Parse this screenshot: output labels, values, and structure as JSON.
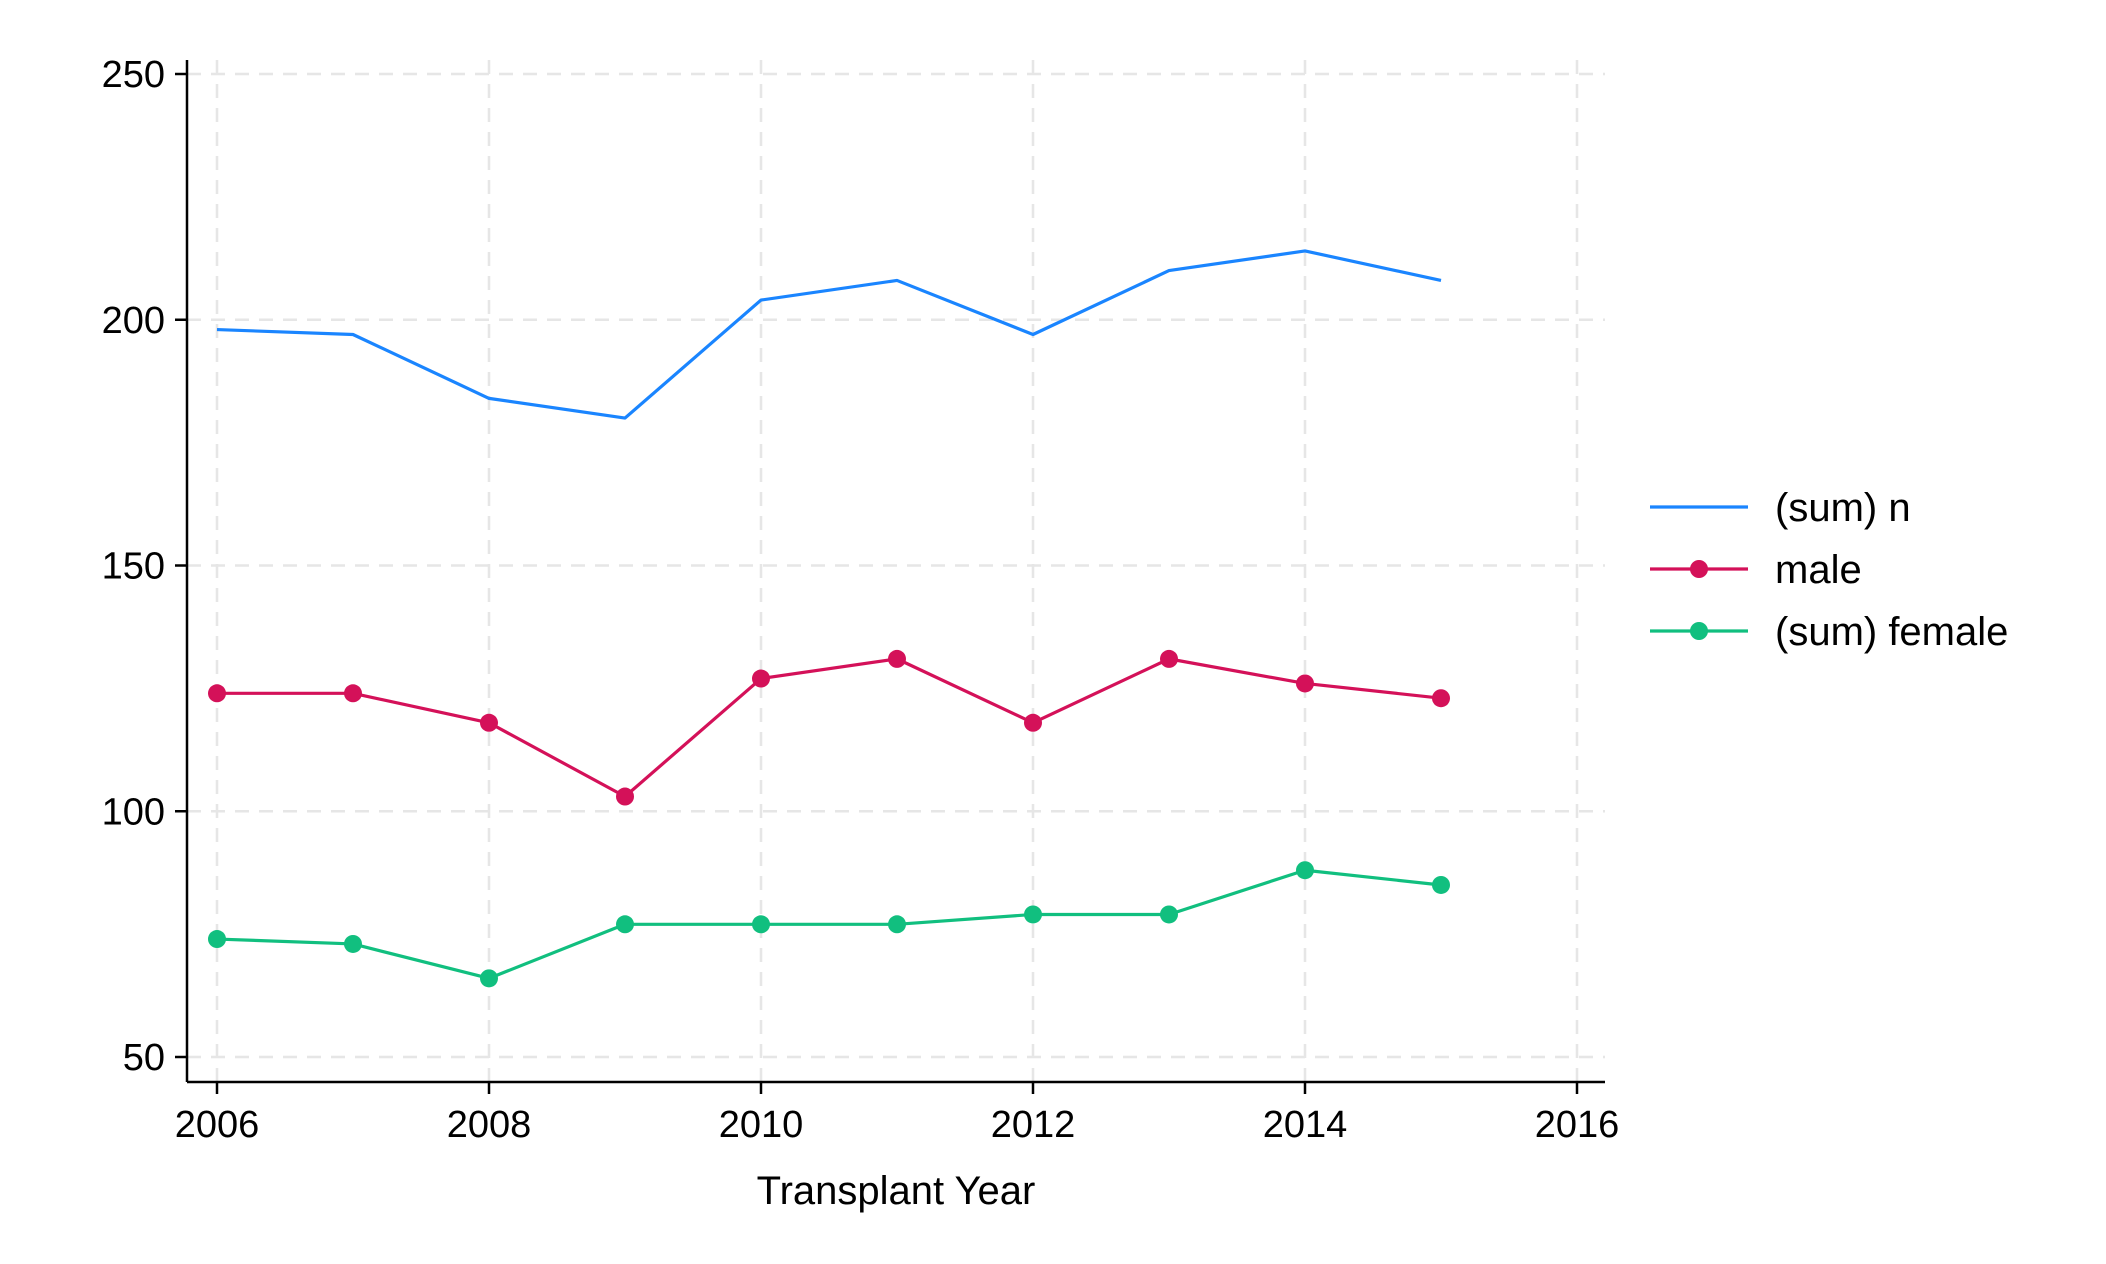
{
  "chart_data": {
    "type": "line",
    "title": "",
    "xlabel": "Transplant Year",
    "ylabel": "",
    "x": [
      2006,
      2007,
      2008,
      2009,
      2010,
      2011,
      2012,
      2013,
      2014,
      2015
    ],
    "xlim": [
      2006,
      2016
    ],
    "ylim": [
      50,
      250
    ],
    "xticks": [
      2006,
      2008,
      2010,
      2012,
      2014,
      2016
    ],
    "yticks": [
      50,
      100,
      150,
      200,
      250
    ],
    "grid": true,
    "legend_position": "right",
    "series": [
      {
        "name": "(sum) n",
        "color": "#1a85ff",
        "marker": "none",
        "values": [
          198,
          197,
          184,
          180,
          204,
          208,
          197,
          210,
          214,
          208
        ]
      },
      {
        "name": "male",
        "color": "#d41159",
        "marker": "circle",
        "values": [
          124,
          124,
          118,
          103,
          127,
          131,
          118,
          131,
          126,
          123
        ]
      },
      {
        "name": "(sum) female",
        "color": "#11bf7f",
        "marker": "circle",
        "values": [
          74,
          73,
          66,
          77,
          77,
          77,
          79,
          79,
          88,
          85
        ]
      }
    ]
  }
}
